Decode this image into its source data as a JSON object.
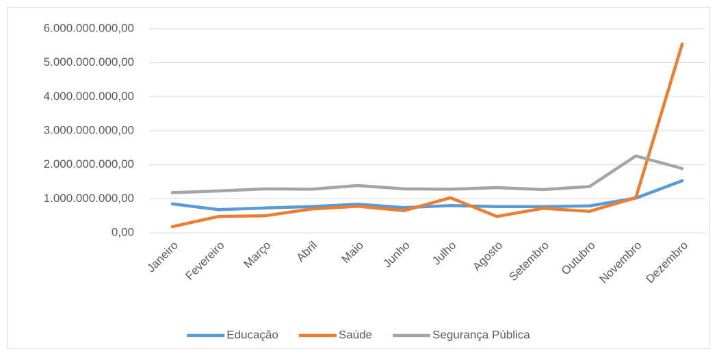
{
  "chart_data": {
    "type": "line",
    "categories": [
      "Janeiro",
      "Fevereiro",
      "Março",
      "Abril",
      "Maio",
      "Junho",
      "Julho",
      "Agosto",
      "Setembro",
      "Outubro",
      "Novembro",
      "Dezembro"
    ],
    "series": [
      {
        "name": "Educação",
        "color": "#5b9bd5",
        "values": [
          850000000,
          680000000,
          730000000,
          770000000,
          840000000,
          740000000,
          800000000,
          770000000,
          770000000,
          790000000,
          1020000000,
          1530000000
        ]
      },
      {
        "name": "Saúde",
        "color": "#ed7d31",
        "values": [
          180000000,
          480000000,
          500000000,
          700000000,
          780000000,
          650000000,
          1030000000,
          480000000,
          720000000,
          630000000,
          1030000000,
          5550000000
        ]
      },
      {
        "name": "Segurança Pública",
        "color": "#a5a5a5",
        "values": [
          1180000000,
          1230000000,
          1290000000,
          1280000000,
          1390000000,
          1290000000,
          1280000000,
          1330000000,
          1270000000,
          1360000000,
          2260000000,
          1890000000
        ]
      }
    ],
    "ylim": [
      0,
      6000000000
    ],
    "yticks": [
      {
        "value": 0,
        "label": "0,00"
      },
      {
        "value": 1000000000,
        "label": "1.000.000.000,00"
      },
      {
        "value": 2000000000,
        "label": "2.000.000.000,00"
      },
      {
        "value": 3000000000,
        "label": "3.000.000.000,00"
      },
      {
        "value": 4000000000,
        "label": "4.000.000.000,00"
      },
      {
        "value": 5000000000,
        "label": "5.000.000.000,00"
      },
      {
        "value": 6000000000,
        "label": "6.000.000.000,00"
      }
    ],
    "grid": true,
    "legend": "bottom"
  }
}
